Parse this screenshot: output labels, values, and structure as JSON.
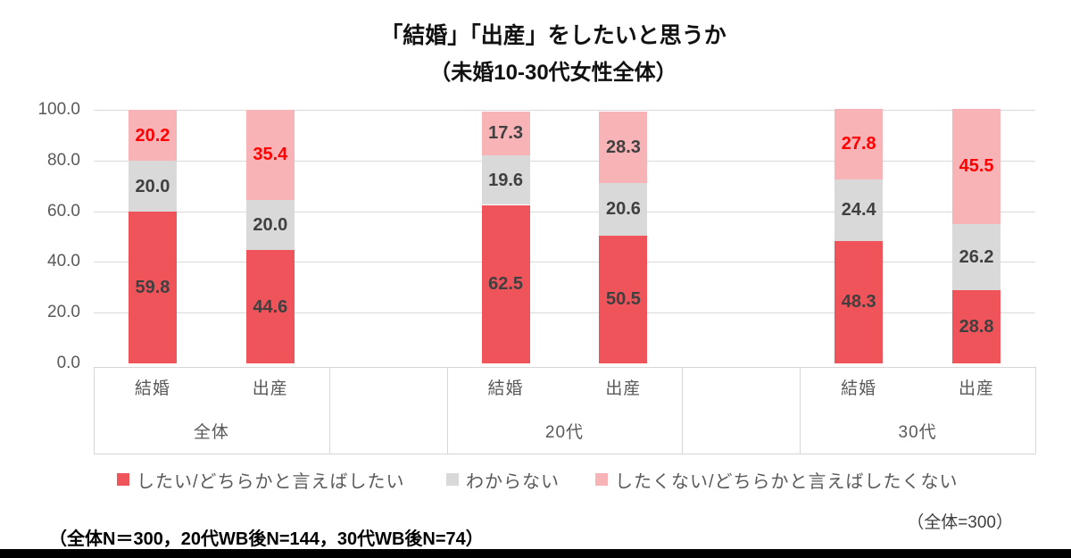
{
  "title": "「結婚」「出産」をしたいと思うか",
  "subtitle": "（未婚10-30代女性全体）",
  "chart_data": {
    "type": "stacked-bar",
    "ylim": [
      0,
      100
    ],
    "yticks": [
      0,
      20,
      40,
      60,
      80,
      100
    ],
    "ytick_labels": [
      "0.0",
      "20.0",
      "40.0",
      "60.0",
      "80.0",
      "100.0"
    ],
    "series": [
      {
        "name": "したい/どちらかと言えばしたい",
        "color": "#F0545B"
      },
      {
        "name": "わからない",
        "color": "#D9D9D9"
      },
      {
        "name": "したくない/どちらかと言えばしたくない",
        "color": "#F8B3B7"
      }
    ],
    "groups": [
      {
        "label": "全体",
        "bars": [
          {
            "label": "結婚",
            "values": [
              59.8,
              20.0,
              20.2
            ],
            "top_label_red": true
          },
          {
            "label": "出産",
            "values": [
              44.6,
              20.0,
              35.4
            ],
            "top_label_red": true
          }
        ]
      },
      {
        "label": "20代",
        "bars": [
          {
            "label": "結婚",
            "values": [
              62.5,
              19.6,
              17.3
            ],
            "top_label_red": false
          },
          {
            "label": "出産",
            "values": [
              50.5,
              20.6,
              28.3
            ],
            "top_label_red": false
          }
        ]
      },
      {
        "label": "30代",
        "bars": [
          {
            "label": "結婚",
            "values": [
              48.3,
              24.4,
              27.8
            ],
            "top_label_red": true
          },
          {
            "label": "出産",
            "values": [
              28.8,
              26.2,
              45.5
            ],
            "top_label_red": true
          }
        ]
      }
    ],
    "legend_position": "bottom",
    "grid": true
  },
  "notes": {
    "sample_size_right": "（全体=300）",
    "sample_breakdown_left": "（全体N＝300，20代WB後N=144，30代WB後N=74）"
  },
  "colors": {
    "series_want": "#F0545B",
    "series_unknown": "#D9D9D9",
    "series_not_want": "#F8B3B7",
    "value_label": "#404040",
    "value_label_highlight": "#FF0000",
    "axis_text": "#595959",
    "gridline": "#DADADA",
    "band_border": "#D6D6D6",
    "bottom_bar": "#000000",
    "background": "#FFFFFF"
  }
}
